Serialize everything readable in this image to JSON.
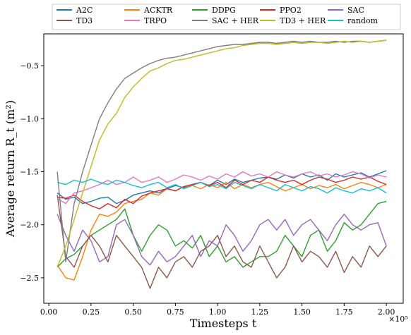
{
  "chart_data": {
    "type": "line",
    "title": "",
    "xlabel": "Timesteps t",
    "ylabel": "Average return R_t (m²)",
    "x_multiplier_label": "×10⁵",
    "xlim": [
      -0.03,
      2.1
    ],
    "ylim": [
      -2.74,
      -0.2
    ],
    "x_ticks": [
      0.0,
      0.25,
      0.5,
      0.75,
      1.0,
      1.25,
      1.5,
      1.75,
      2.0
    ],
    "x_tick_labels": [
      "0.00",
      "0.25",
      "0.50",
      "0.75",
      "1.00",
      "1.25",
      "1.50",
      "1.75",
      "2.00"
    ],
    "y_ticks": [
      -2.5,
      -2.0,
      -1.5,
      -1.0,
      -0.5
    ],
    "y_tick_labels": [
      "−2.5",
      "−2.0",
      "−1.5",
      "−1.0",
      "−0.5"
    ],
    "grid": false,
    "legend_position": "top (above plot), 5 columns",
    "x": [
      0.05,
      0.1,
      0.15,
      0.2,
      0.25,
      0.3,
      0.35,
      0.4,
      0.45,
      0.5,
      0.55,
      0.6,
      0.65,
      0.7,
      0.75,
      0.8,
      0.85,
      0.9,
      0.95,
      1.0,
      1.05,
      1.1,
      1.15,
      1.2,
      1.25,
      1.3,
      1.35,
      1.4,
      1.45,
      1.5,
      1.55,
      1.6,
      1.65,
      1.7,
      1.75,
      1.8,
      1.85,
      1.9,
      1.95,
      2.0
    ],
    "series": [
      {
        "name": "A2C",
        "color": "#1f77b4",
        "values": [
          -1.7,
          -1.76,
          -1.74,
          -1.8,
          -1.78,
          -1.75,
          -1.74,
          -1.8,
          -1.77,
          -1.72,
          -1.7,
          -1.68,
          -1.7,
          -1.66,
          -1.63,
          -1.65,
          -1.62,
          -1.6,
          -1.63,
          -1.58,
          -1.62,
          -1.57,
          -1.6,
          -1.58,
          -1.56,
          -1.55,
          -1.57,
          -1.53,
          -1.56,
          -1.52,
          -1.55,
          -1.53,
          -1.58,
          -1.52,
          -1.55,
          -1.53,
          -1.51,
          -1.55,
          -1.52,
          -1.49
        ]
      },
      {
        "name": "ACKTR",
        "color": "#ff7f0e",
        "values": [
          -2.38,
          -2.5,
          -2.52,
          -2.3,
          -2.05,
          -1.9,
          -1.92,
          -1.88,
          -1.8,
          -1.78,
          -1.76,
          -1.7,
          -1.72,
          -1.66,
          -1.68,
          -1.64,
          -1.63,
          -1.66,
          -1.62,
          -1.65,
          -1.6,
          -1.66,
          -1.62,
          -1.65,
          -1.62,
          -1.6,
          -1.64,
          -1.68,
          -1.65,
          -1.62,
          -1.66,
          -1.63,
          -1.65,
          -1.62,
          -1.66,
          -1.63,
          -1.6,
          -1.62,
          -1.65,
          -1.62
        ]
      },
      {
        "name": "DDPG",
        "color": "#2ca02c",
        "values": [
          -2.4,
          -2.32,
          -2.28,
          -2.2,
          -2.1,
          -2.05,
          -2.0,
          -1.95,
          -1.85,
          -2.1,
          -2.25,
          -2.1,
          -2.0,
          -2.05,
          -2.2,
          -2.15,
          -2.22,
          -2.1,
          -2.3,
          -2.2,
          -2.35,
          -2.3,
          -2.4,
          -2.35,
          -2.3,
          -2.3,
          -2.25,
          -2.1,
          -2.2,
          -2.3,
          -2.1,
          -2.05,
          -2.25,
          -2.15,
          -1.98,
          -2.05,
          -2.0,
          -1.9,
          -1.8,
          -1.78
        ]
      },
      {
        "name": "PPO2",
        "color": "#d62728",
        "values": [
          -1.74,
          -1.75,
          -1.72,
          -1.78,
          -1.82,
          -1.85,
          -1.8,
          -1.84,
          -1.76,
          -1.8,
          -1.73,
          -1.7,
          -1.68,
          -1.66,
          -1.68,
          -1.64,
          -1.62,
          -1.6,
          -1.63,
          -1.6,
          -1.65,
          -1.58,
          -1.62,
          -1.58,
          -1.6,
          -1.55,
          -1.58,
          -1.6,
          -1.58,
          -1.62,
          -1.58,
          -1.55,
          -1.57,
          -1.6,
          -1.58,
          -1.55,
          -1.57,
          -1.55,
          -1.59,
          -1.62
        ]
      },
      {
        "name": "SAC",
        "color": "#9467bd",
        "values": [
          -1.9,
          -2.1,
          -2.25,
          -2.05,
          -2.15,
          -2.35,
          -2.3,
          -2.0,
          -1.95,
          -2.1,
          -2.3,
          -2.38,
          -2.25,
          -2.35,
          -2.3,
          -2.2,
          -2.1,
          -2.3,
          -2.15,
          -2.2,
          -2.0,
          -2.1,
          -2.25,
          -2.15,
          -2.0,
          -1.95,
          -2.05,
          -1.95,
          -2.1,
          -2.0,
          -1.95,
          -2.05,
          -2.15,
          -2.0,
          -1.9,
          -2.0,
          -2.05,
          -2.0,
          -1.98,
          -2.2
        ]
      },
      {
        "name": "TD3",
        "color": "#8c564b",
        "values": [
          -1.72,
          -2.3,
          -2.4,
          -2.2,
          -2.1,
          -2.2,
          -2.35,
          -2.1,
          -2.2,
          -2.3,
          -2.4,
          -2.6,
          -2.4,
          -2.5,
          -2.35,
          -2.3,
          -2.4,
          -2.25,
          -2.2,
          -2.1,
          -2.3,
          -2.2,
          -2.35,
          -2.4,
          -2.2,
          -2.35,
          -2.5,
          -2.4,
          -2.2,
          -2.35,
          -2.25,
          -2.3,
          -2.4,
          -2.25,
          -2.45,
          -2.3,
          -2.4,
          -2.2,
          -2.3,
          -2.2
        ]
      },
      {
        "name": "TRPO",
        "color": "#e377c2",
        "values": [
          -1.75,
          -1.8,
          -1.7,
          -1.68,
          -1.65,
          -1.62,
          -1.58,
          -1.62,
          -1.6,
          -1.55,
          -1.6,
          -1.58,
          -1.55,
          -1.6,
          -1.57,
          -1.53,
          -1.55,
          -1.58,
          -1.54,
          -1.57,
          -1.52,
          -1.55,
          -1.5,
          -1.54,
          -1.52,
          -1.55,
          -1.5,
          -1.53,
          -1.55,
          -1.52,
          -1.5,
          -1.54,
          -1.52,
          -1.55,
          -1.53,
          -1.5,
          -1.52,
          -1.56,
          -1.53,
          -1.55
        ]
      },
      {
        "name": "SAC + HER",
        "color": "#7f7f7f",
        "values": [
          -1.5,
          -2.35,
          -1.8,
          -1.5,
          -1.25,
          -1.0,
          -0.85,
          -0.72,
          -0.62,
          -0.57,
          -0.52,
          -0.48,
          -0.45,
          -0.43,
          -0.42,
          -0.4,
          -0.38,
          -0.36,
          -0.34,
          -0.32,
          -0.31,
          -0.3,
          -0.3,
          -0.29,
          -0.28,
          -0.28,
          -0.29,
          -0.28,
          -0.27,
          -0.28,
          -0.27,
          -0.28,
          -0.28,
          -0.27,
          -0.28,
          -0.27,
          -0.27,
          -0.28,
          -0.27,
          -0.26
        ]
      },
      {
        "name": "TD3 + HER",
        "color": "#bcbd22",
        "values": [
          -2.4,
          -2.2,
          -1.95,
          -1.7,
          -1.45,
          -1.2,
          -1.05,
          -0.95,
          -0.8,
          -0.7,
          -0.62,
          -0.55,
          -0.52,
          -0.48,
          -0.45,
          -0.44,
          -0.42,
          -0.4,
          -0.38,
          -0.36,
          -0.34,
          -0.33,
          -0.31,
          -0.3,
          -0.29,
          -0.29,
          -0.3,
          -0.29,
          -0.28,
          -0.29,
          -0.28,
          -0.28,
          -0.29,
          -0.28,
          -0.27,
          -0.28,
          -0.27,
          -0.28,
          -0.27,
          -0.26
        ]
      },
      {
        "name": "random",
        "color": "#17becf",
        "values": [
          -1.6,
          -1.62,
          -1.58,
          -1.6,
          -1.57,
          -1.6,
          -1.62,
          -1.58,
          -1.6,
          -1.63,
          -1.65,
          -1.62,
          -1.6,
          -1.65,
          -1.62,
          -1.66,
          -1.63,
          -1.6,
          -1.64,
          -1.62,
          -1.66,
          -1.6,
          -1.63,
          -1.66,
          -1.62,
          -1.65,
          -1.68,
          -1.62,
          -1.65,
          -1.68,
          -1.64,
          -1.66,
          -1.7,
          -1.65,
          -1.68,
          -1.7,
          -1.66,
          -1.68,
          -1.65,
          -1.7
        ]
      }
    ]
  }
}
